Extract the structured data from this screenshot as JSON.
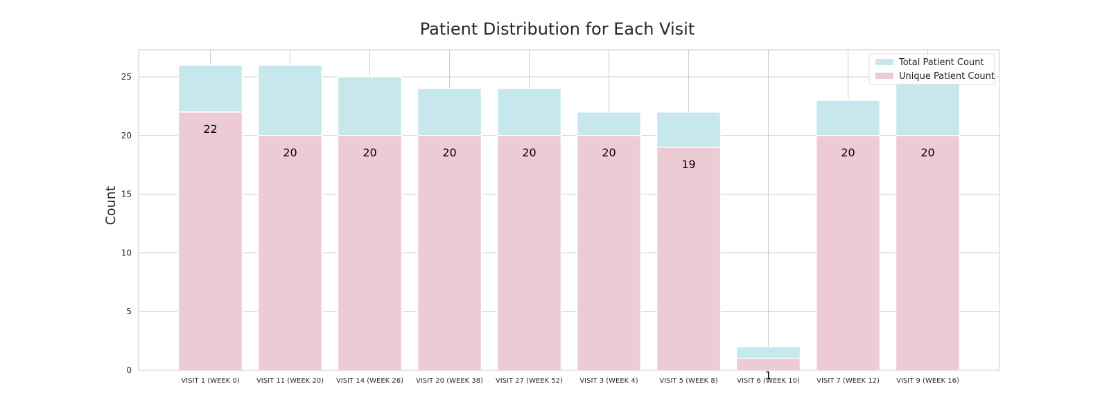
{
  "chart_data": {
    "type": "bar",
    "title": "Patient Distribution for Each Visit",
    "xlabel": "",
    "ylabel": "Count",
    "ylim": [
      0,
      27.3
    ],
    "yticks": [
      0,
      5,
      10,
      15,
      20,
      25
    ],
    "grid": true,
    "legend_position": "top-right",
    "categories": [
      "VISIT 1 (WEEK 0)",
      "VISIT 11 (WEEK 20)",
      "VISIT 14 (WEEK 26)",
      "VISIT 20 (WEEK 38)",
      "VISIT 27 (WEEK 52)",
      "VISIT 3 (WEEK 4)",
      "VISIT 5 (WEEK 8)",
      "VISIT 6 (WEEK 10)",
      "VISIT 7 (WEEK 12)",
      "VISIT 9 (WEEK 16)"
    ],
    "series": [
      {
        "name": "Total Patient Count",
        "color": "#c6e8ec",
        "values": [
          26,
          26,
          25,
          24,
          24,
          22,
          22,
          2,
          23,
          25
        ]
      },
      {
        "name": "Unique Patient Count",
        "color": "#eccbd5",
        "values": [
          22,
          20,
          20,
          20,
          20,
          20,
          19,
          1,
          20,
          20
        ]
      }
    ],
    "data_labels": [
      "22",
      "20",
      "20",
      "20",
      "20",
      "20",
      "19",
      "1",
      "20",
      "20"
    ]
  }
}
